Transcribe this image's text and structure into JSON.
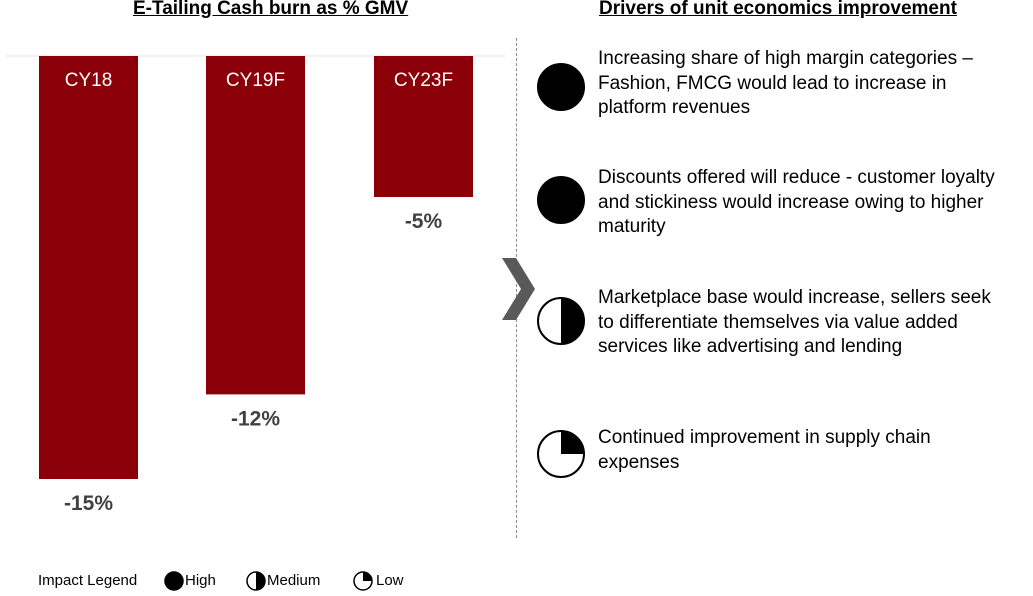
{
  "left_title": "E-Tailing Cash burn as % GMV",
  "right_title": "Drivers of unit economics improvement",
  "chart_data": {
    "type": "bar",
    "categories": [
      "CY18",
      "CY19F",
      "CY23F"
    ],
    "values": [
      -15,
      -12,
      -5
    ],
    "data_labels": [
      "-15%",
      "-12%",
      "-5%"
    ],
    "ylim": [
      -15,
      0
    ],
    "bar_color": "#8B0008",
    "grid": false
  },
  "drivers": [
    {
      "impact": "High",
      "text": [
        "Increasing share of high margin categories –",
        "Fashion, FMCG would lead to increase in",
        "platform revenues"
      ]
    },
    {
      "impact": "High",
      "text": [
        "Discounts offered will reduce - customer loyalty",
        "and stickiness would increase owing to higher",
        "maturity"
      ]
    },
    {
      "impact": "Medium",
      "text": [
        "Marketplace base would increase, sellers seek",
        "to differentiate themselves via value added",
        "services like advertising and lending"
      ]
    },
    {
      "impact": "Low",
      "text": [
        "Continued improvement in supply chain",
        "expenses"
      ]
    }
  ],
  "legend": {
    "label": "Impact Legend",
    "items": [
      {
        "impact": "High",
        "label": "High"
      },
      {
        "impact": "Medium",
        "label": "Medium"
      },
      {
        "impact": "Low",
        "label": "Low"
      }
    ]
  },
  "colors": {
    "bar": "#8B0008",
    "chevron": "#595959",
    "divider": "#8c8c8c"
  }
}
